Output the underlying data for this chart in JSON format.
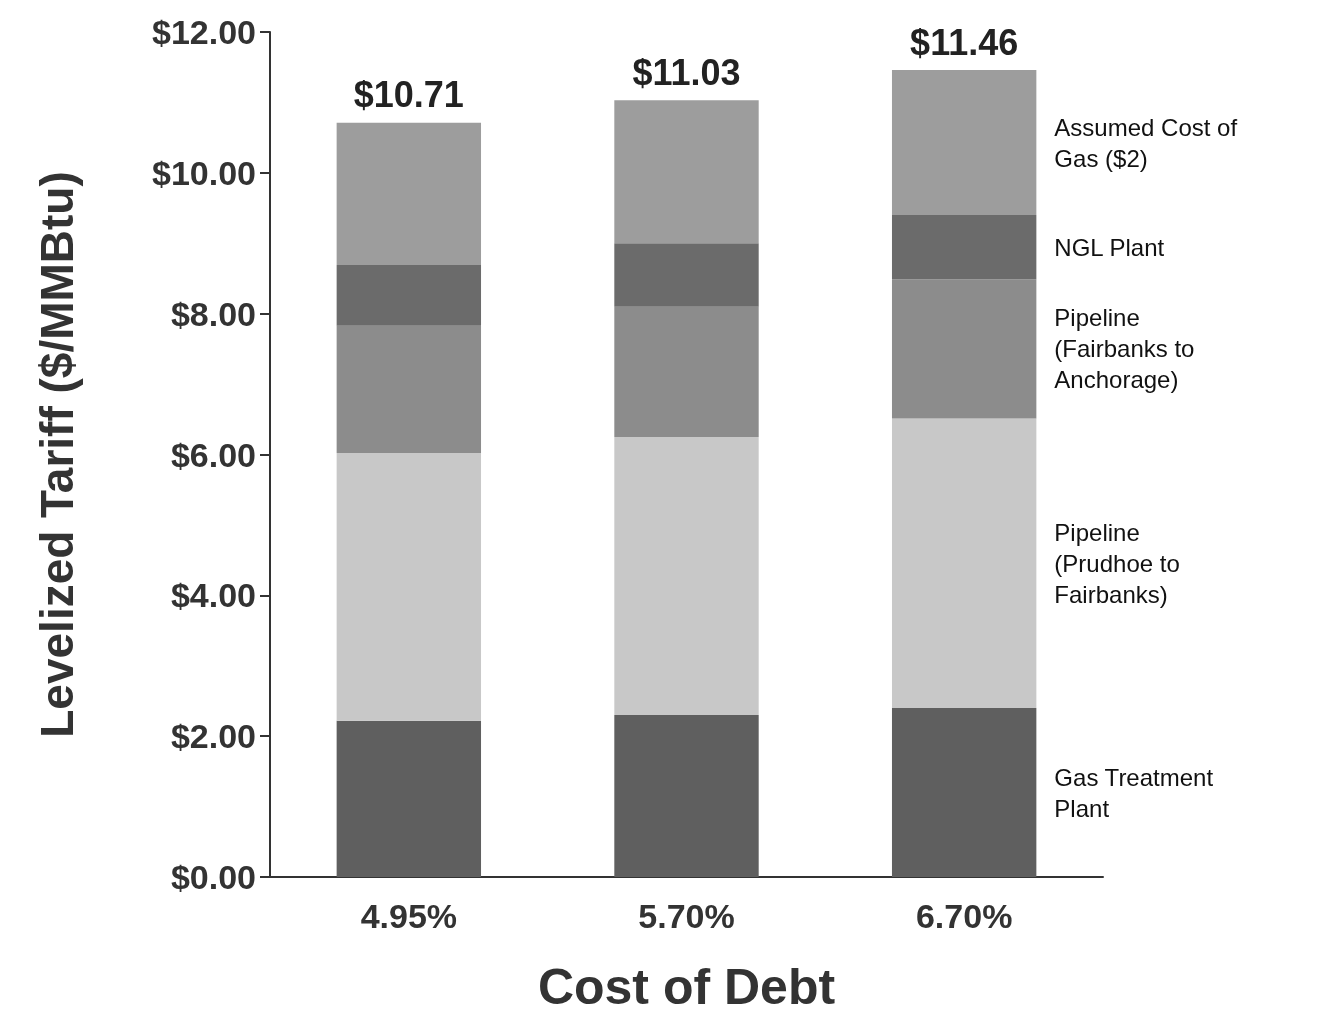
{
  "chart_data": {
    "type": "bar",
    "stacked": true,
    "xlabel": "Cost of Debt",
    "ylabel": "Levelized Tariff ($/MMBtu)",
    "categories": [
      "4.95%",
      "5.70%",
      "6.70%"
    ],
    "series": [
      {
        "name": "Gas Treatment Plant",
        "color": "#5f5f5f",
        "values": [
          2.22,
          2.3,
          2.4
        ]
      },
      {
        "name": "Pipeline (Prudhoe to Fairbanks)",
        "color": "#c8c8c8",
        "values": [
          3.8,
          3.95,
          4.11
        ]
      },
      {
        "name": "Pipeline (Fairbanks to Anchorage)",
        "color": "#8c8c8c",
        "values": [
          1.81,
          1.85,
          1.98
        ]
      },
      {
        "name": "NGL Plant",
        "color": "#6b6b6b",
        "values": [
          0.86,
          0.9,
          0.91
        ]
      },
      {
        "name": "Assumed Cost of Gas ($2)",
        "color": "#9d9d9d",
        "values": [
          2.02,
          2.03,
          2.06
        ]
      }
    ],
    "totals": [
      "$10.71",
      "$11.03",
      "$11.46"
    ],
    "ylim": [
      0,
      12
    ],
    "yticks": [
      {
        "value": 0,
        "label": "$0.00"
      },
      {
        "value": 2,
        "label": "$2.00"
      },
      {
        "value": 4,
        "label": "$4.00"
      },
      {
        "value": 6,
        "label": "$6.00"
      },
      {
        "value": 8,
        "label": "$8.00"
      },
      {
        "value": 10,
        "label": "$10.00"
      },
      {
        "value": 12,
        "label": "$12.00"
      }
    ],
    "grid": false
  }
}
